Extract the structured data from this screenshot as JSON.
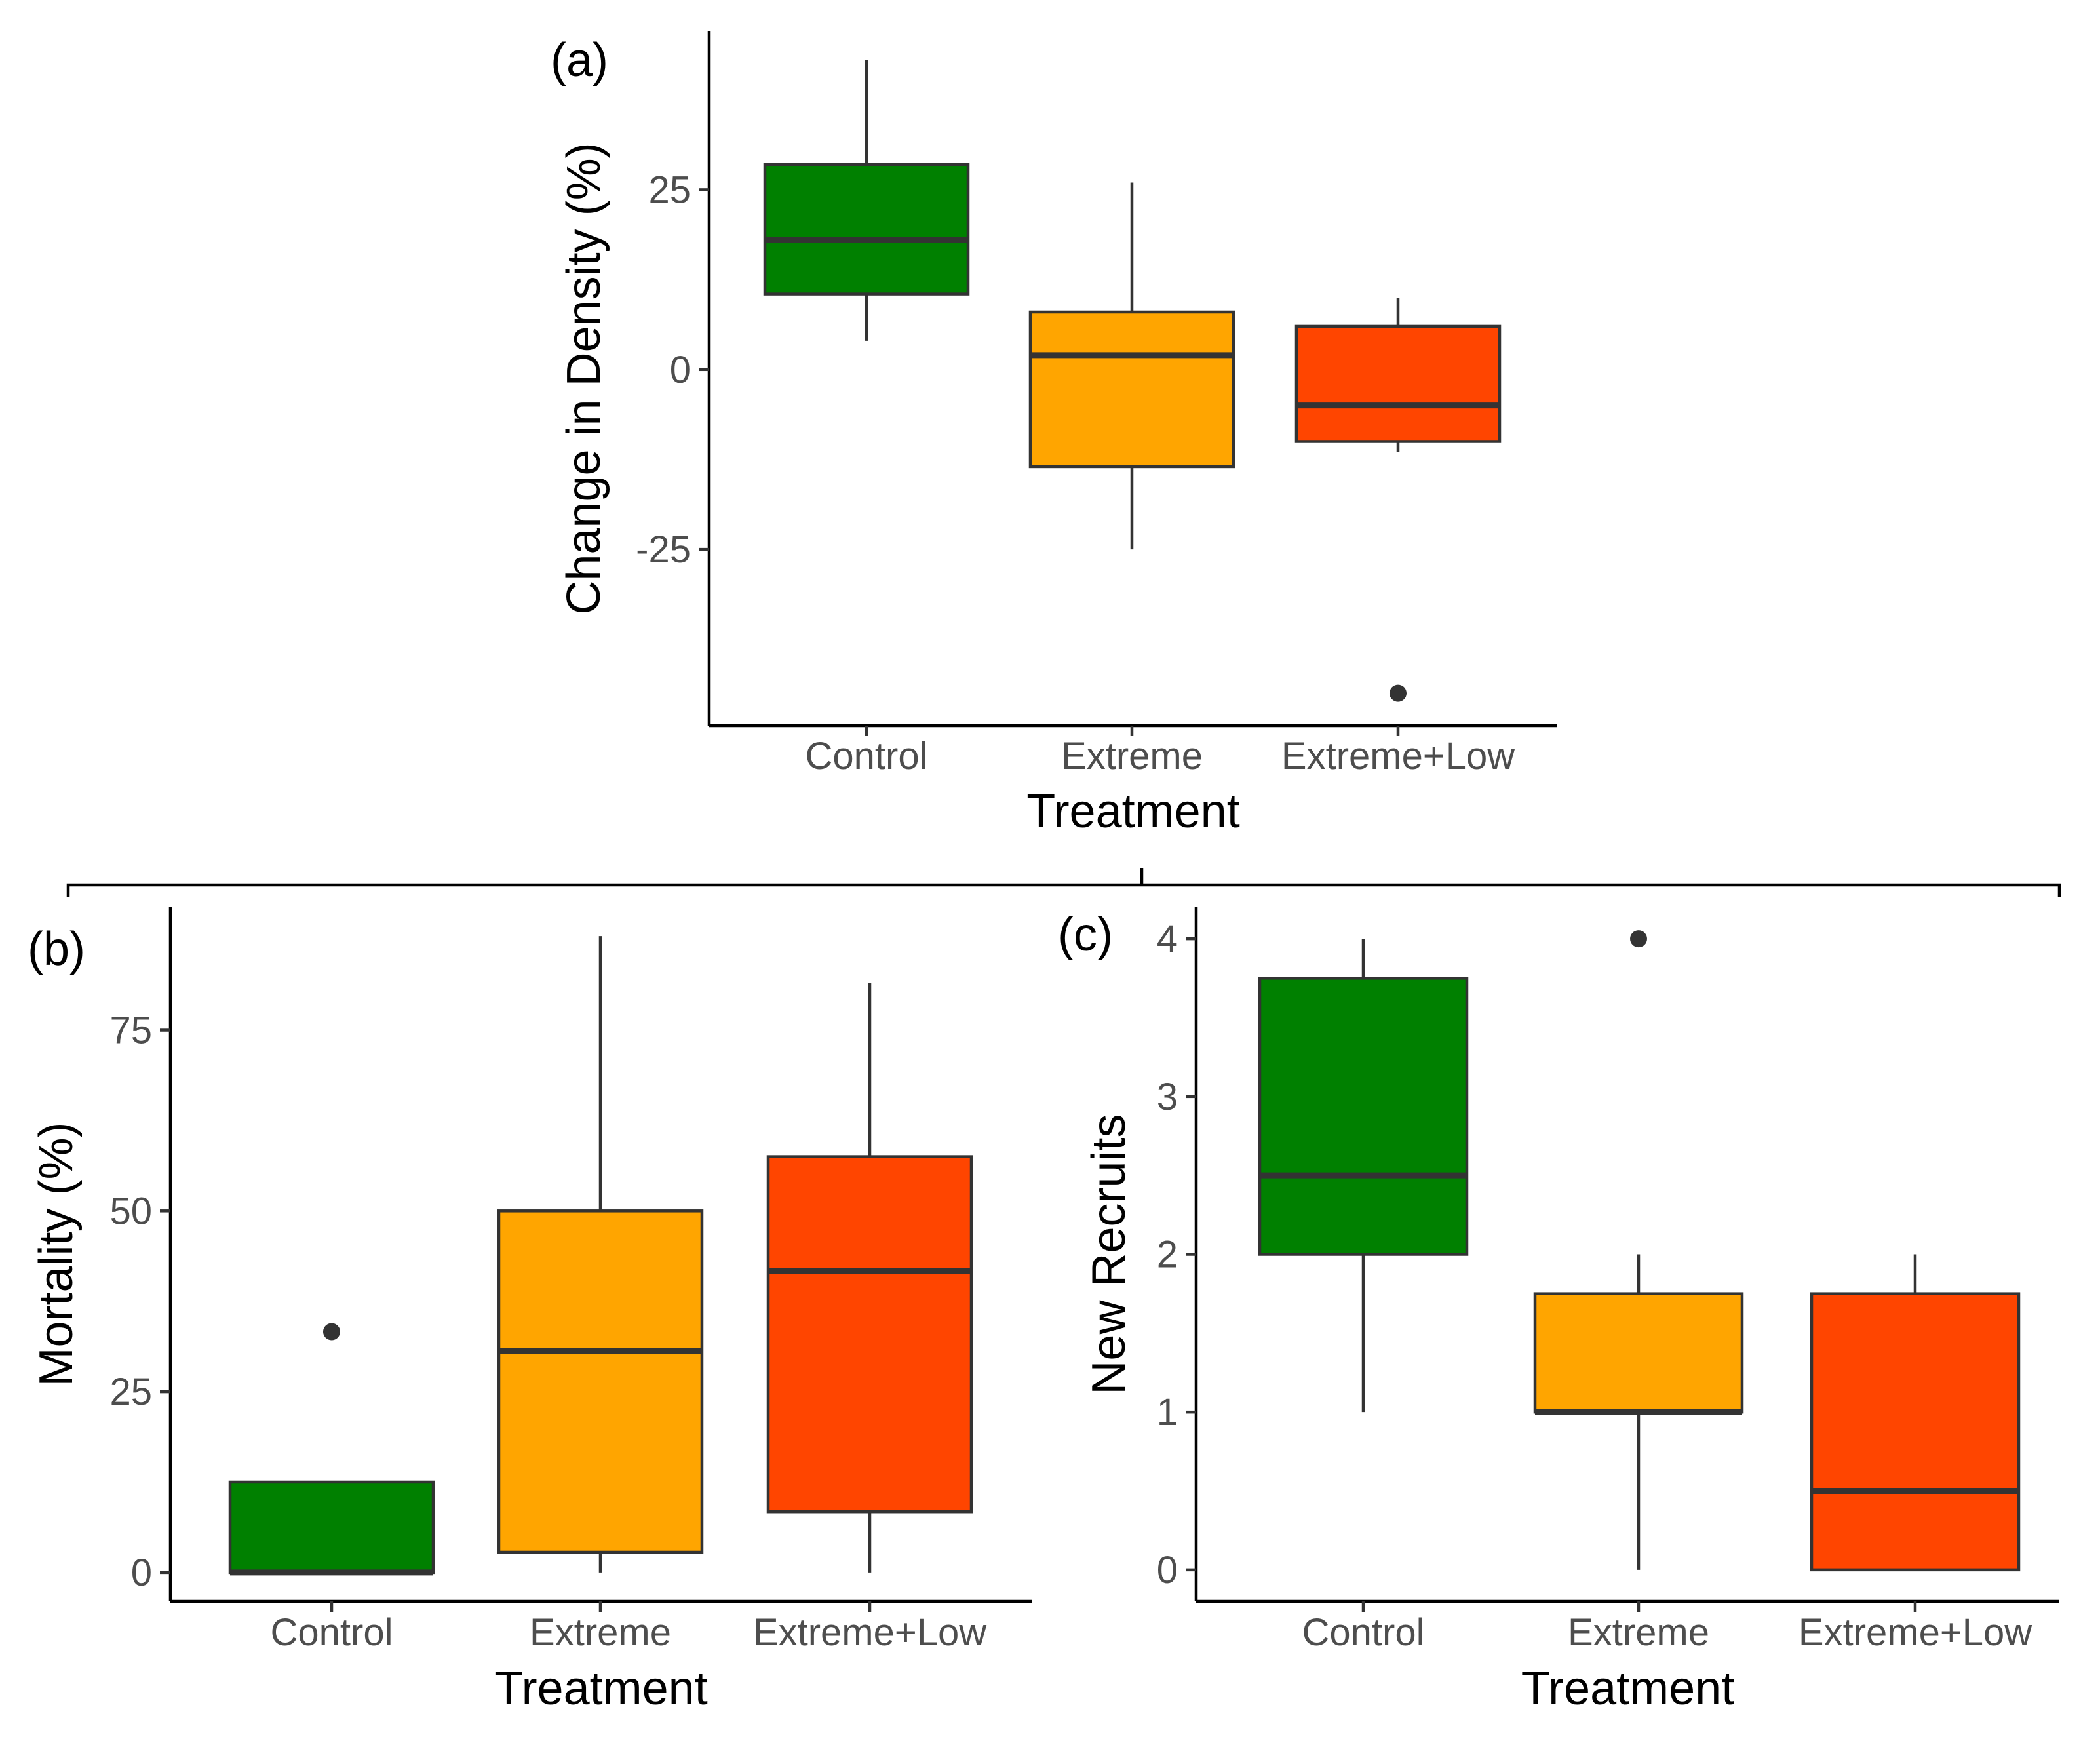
{
  "chart_data": [
    {
      "type": "boxplot",
      "panel_label": "(a)",
      "xlabel": "Treatment",
      "ylabel": "Change in Density (%)",
      "categories": [
        "Control",
        "Extreme",
        "Extreme+Low"
      ],
      "ylim": [
        -49.5,
        47
      ],
      "yticks": [
        -25,
        0,
        25
      ],
      "ytick_labels": [
        "-25",
        "0",
        "25"
      ],
      "colors": [
        "#008000",
        "#FFA500",
        "#FF4500"
      ],
      "boxes": [
        {
          "category": "Control",
          "whisker_low": 4,
          "q1": 10.5,
          "median": 18,
          "q3": 28.5,
          "whisker_high": 43,
          "outliers": []
        },
        {
          "category": "Extreme",
          "whisker_low": -25,
          "q1": -13.5,
          "median": 2,
          "q3": 8,
          "whisker_high": 26,
          "outliers": []
        },
        {
          "category": "Extreme+Low",
          "whisker_low": -11.5,
          "q1": -10,
          "median": -5,
          "q3": 6,
          "whisker_high": 10,
          "outliers": [
            -45
          ]
        }
      ]
    },
    {
      "type": "boxplot",
      "panel_label": "(b)",
      "xlabel": "Treatment",
      "ylabel": "Mortality (%)",
      "categories": [
        "Control",
        "Extreme",
        "Extreme+Low"
      ],
      "ylim": [
        -4,
        92
      ],
      "yticks": [
        0,
        25,
        50,
        75
      ],
      "ytick_labels": [
        "0",
        "25",
        "50",
        "75"
      ],
      "colors": [
        "#008000",
        "#FFA500",
        "#FF4500"
      ],
      "boxes": [
        {
          "category": "Control",
          "whisker_low": 0,
          "q1": 0,
          "median": 0,
          "q3": 12.5,
          "whisker_high": 12.5,
          "outliers": [
            33.3
          ]
        },
        {
          "category": "Extreme",
          "whisker_low": 0,
          "q1": 2.8,
          "median": 30.6,
          "q3": 50,
          "whisker_high": 88,
          "outliers": []
        },
        {
          "category": "Extreme+Low",
          "whisker_low": 0,
          "q1": 8.4,
          "median": 41.7,
          "q3": 57.5,
          "whisker_high": 81.5,
          "outliers": []
        }
      ]
    },
    {
      "type": "boxplot",
      "panel_label": "(c)",
      "xlabel": "Treatment",
      "ylabel": "New Recruits",
      "categories": [
        "Control",
        "Extreme",
        "Extreme+Low"
      ],
      "ylim": [
        -0.2,
        4.2
      ],
      "yticks": [
        0,
        1,
        2,
        3,
        4
      ],
      "ytick_labels": [
        "0",
        "1",
        "2",
        "3",
        "4"
      ],
      "colors": [
        "#008000",
        "#FFA500",
        "#FF4500"
      ],
      "boxes": [
        {
          "category": "Control",
          "whisker_low": 1,
          "q1": 2,
          "median": 2.5,
          "q3": 3.75,
          "whisker_high": 4,
          "outliers": []
        },
        {
          "category": "Extreme",
          "whisker_low": 0,
          "q1": 1,
          "median": 1,
          "q3": 1.75,
          "whisker_high": 2,
          "outliers": [
            4
          ]
        },
        {
          "category": "Extreme+Low",
          "whisker_low": 0,
          "q1": 0,
          "median": 0.5,
          "q3": 1.75,
          "whisker_high": 2,
          "outliers": []
        }
      ]
    }
  ]
}
